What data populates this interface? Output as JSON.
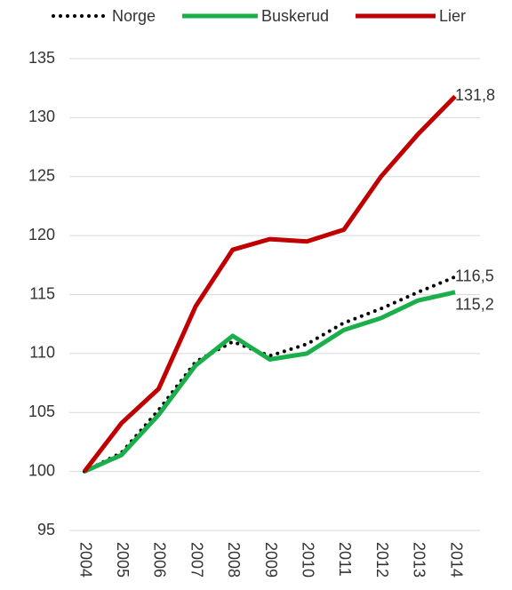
{
  "chart_data": {
    "type": "line",
    "categories": [
      "2004",
      "2005",
      "2006",
      "2007",
      "2008",
      "2009",
      "2010",
      "2011",
      "2012",
      "2013",
      "2014"
    ],
    "series": [
      {
        "name": "Norge",
        "color": "#000000",
        "dash": "dotted",
        "values": [
          100,
          101.6,
          105.2,
          109.3,
          111,
          109.8,
          110.8,
          112.6,
          113.8,
          115.2,
          116.5
        ],
        "value_labels": [
          null,
          null,
          null,
          null,
          null,
          null,
          null,
          null,
          null,
          null,
          "116,5"
        ]
      },
      {
        "name": "Buskerud",
        "color": "#1aaf4b",
        "values": [
          100,
          101.4,
          104.8,
          109,
          111.5,
          109.5,
          110,
          112,
          113,
          114.5,
          115.2
        ],
        "value_labels": [
          null,
          null,
          null,
          null,
          null,
          null,
          null,
          null,
          null,
          null,
          "115,2"
        ]
      },
      {
        "name": "Lier",
        "color": "#c00000",
        "values": [
          100,
          104.1,
          107,
          114,
          118.8,
          119.7,
          119.5,
          120.5,
          125,
          128.6,
          131.8
        ],
        "value_labels": [
          null,
          null,
          null,
          null,
          null,
          null,
          null,
          null,
          null,
          null,
          "131,8"
        ]
      }
    ],
    "ylim": [
      95,
      135
    ],
    "yticks": [
      95,
      100,
      105,
      110,
      115,
      120,
      125,
      130,
      135
    ],
    "grid": true,
    "legend": "top"
  }
}
